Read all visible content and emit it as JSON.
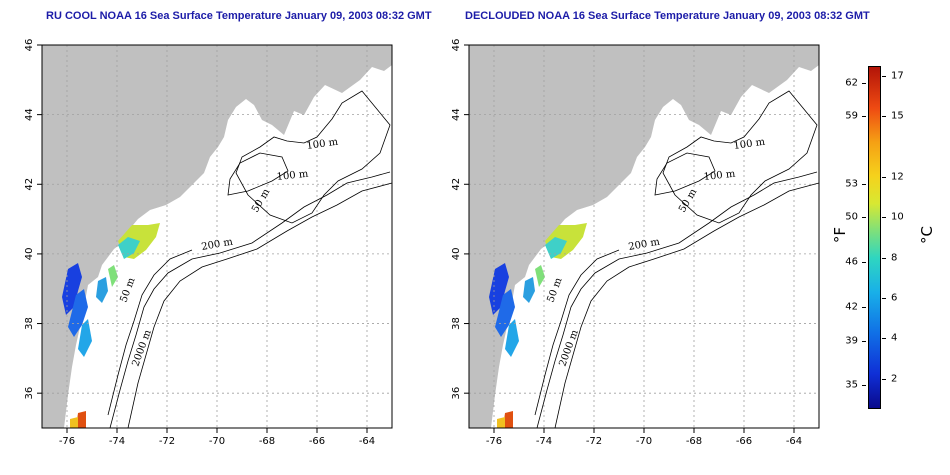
{
  "titles": {
    "left": "RU COOL NOAA 16 Sea Surface Temperature January 09, 2003 08:32 GMT",
    "right": "DECLOUDED NOAA 16 Sea Surface Temperature January 09, 2003 08:32 GMT"
  },
  "map": {
    "lon_range": [
      -77,
      -63
    ],
    "lat_range": [
      35,
      46
    ],
    "x_ticks": [
      -76,
      -74,
      -72,
      -70,
      -68,
      -66,
      -64
    ],
    "y_ticks": [
      36,
      38,
      40,
      42,
      44,
      46
    ],
    "land_color": "#c0c0c0",
    "grid_color": "#a0a0a0",
    "contour_labels": [
      "100 m",
      "100 m",
      "50 m",
      "200 m",
      "50 m",
      "2000 m"
    ]
  },
  "colorbar": {
    "fahrenheit_ticks": [
      "62",
      "59",
      "53",
      "50",
      "46",
      "42",
      "39",
      "35"
    ],
    "celsius_ticks": [
      "17",
      "15",
      "12",
      "10",
      "8",
      "6",
      "4",
      "2"
    ],
    "fahrenheit_unit": "°F",
    "celsius_unit": "°C",
    "range_c": [
      0.5,
      17.5
    ]
  }
}
